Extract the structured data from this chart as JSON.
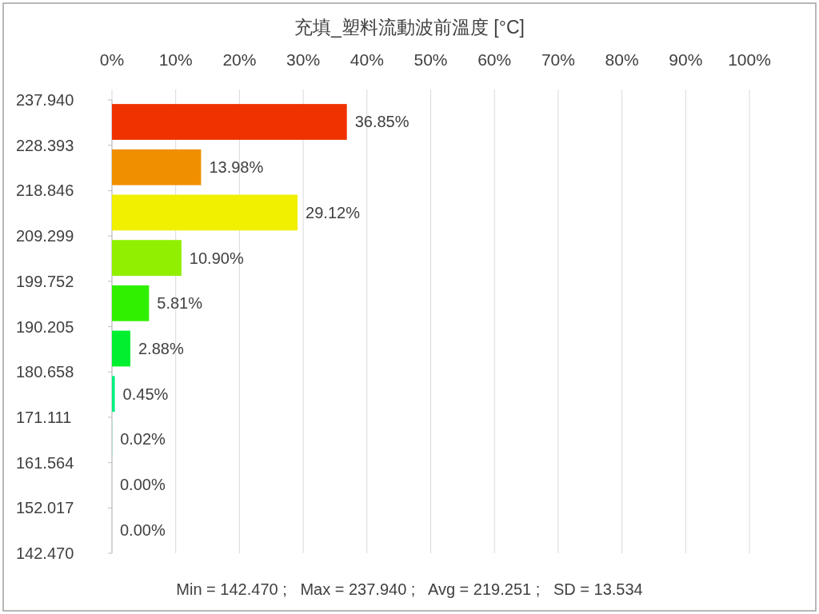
{
  "chart_data": {
    "type": "histogram",
    "orientation": "horizontal",
    "title": "充填_塑料流動波前溫度 [°C]",
    "bins": [
      142.47,
      152.017,
      161.564,
      171.111,
      180.658,
      190.205,
      199.752,
      209.299,
      218.846,
      228.393,
      237.94
    ],
    "values": [
      0,
      0,
      0.02,
      0.45,
      2.88,
      5.81,
      10.9,
      29.12,
      13.98,
      36.85
    ],
    "value_labels": [
      "0.00%",
      "0.00%",
      "0.02%",
      "0.45%",
      "2.88%",
      "5.81%",
      "10.90%",
      "29.12%",
      "13.98%",
      "36.85%"
    ],
    "colors": [
      "#0060f0",
      "#00a0f0",
      "#00f0c0",
      "#00f080",
      "#00f030",
      "#30f000",
      "#90f000",
      "#f0f000",
      "#f09000",
      "#f03200"
    ],
    "xlim": [
      0,
      100
    ],
    "xticks": [
      {
        "value": 0,
        "label": "0%"
      },
      {
        "value": 10,
        "label": "10%"
      },
      {
        "value": 20,
        "label": "20%"
      },
      {
        "value": 30,
        "label": "30%"
      },
      {
        "value": 40,
        "label": "40%"
      },
      {
        "value": 50,
        "label": "50%"
      },
      {
        "value": 60,
        "label": "60%"
      },
      {
        "value": 70,
        "label": "70%"
      },
      {
        "value": 80,
        "label": "80%"
      },
      {
        "value": 90,
        "label": "90%"
      },
      {
        "value": 100,
        "label": "100%"
      }
    ],
    "ylim": [
      142.47,
      237.94
    ],
    "yticks": [
      {
        "value": 142.47,
        "label": "142.470"
      },
      {
        "value": 152.017,
        "label": "152.017"
      },
      {
        "value": 161.564,
        "label": "161.564"
      },
      {
        "value": 171.111,
        "label": "171.111"
      },
      {
        "value": 180.658,
        "label": "180.658"
      },
      {
        "value": 190.205,
        "label": "190.205"
      },
      {
        "value": 199.752,
        "label": "199.752"
      },
      {
        "value": 209.299,
        "label": "209.299"
      },
      {
        "value": 218.846,
        "label": "218.846"
      },
      {
        "value": 228.393,
        "label": "228.393"
      },
      {
        "value": 237.94,
        "label": "237.940"
      }
    ],
    "grid": "x",
    "annotations": [
      "Min = 142.470 ;   Max = 237.940 ;   Avg = 219.251 ;   SD = 13.534"
    ]
  }
}
